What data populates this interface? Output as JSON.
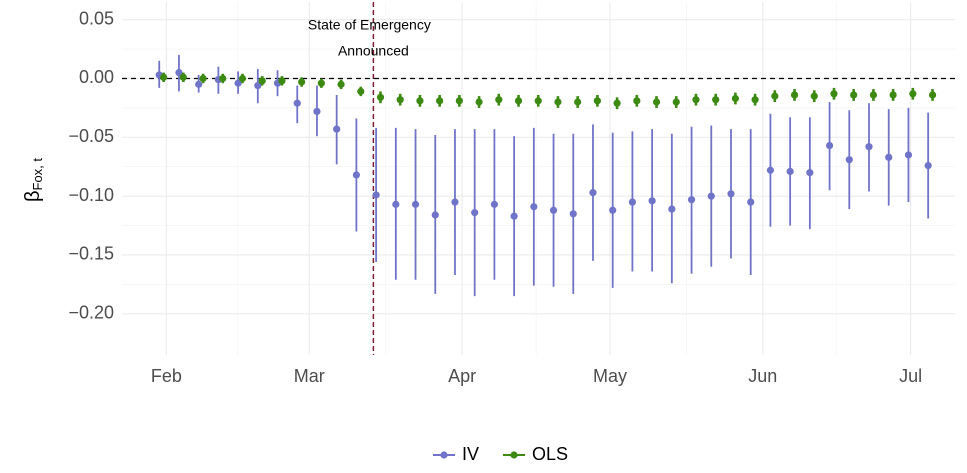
{
  "chart_data": {
    "type": "errorbar",
    "y_label": "β",
    "y_label_subscript": "Fox, t",
    "xlim": [
      23,
      192
    ],
    "xticks": [
      {
        "value": 32,
        "label": "Feb"
      },
      {
        "value": 61,
        "label": "Mar"
      },
      {
        "value": 92,
        "label": "Apr"
      },
      {
        "value": 122,
        "label": "May"
      },
      {
        "value": 153,
        "label": "Jun"
      },
      {
        "value": 183,
        "label": "Jul"
      }
    ],
    "ylim": [
      -0.235,
      0.065
    ],
    "yticks": [
      {
        "value": 0.05,
        "label": "0.05"
      },
      {
        "value": 0,
        "label": "0.00"
      },
      {
        "value": -0.05,
        "label": "−0.05"
      },
      {
        "value": -0.1,
        "label": "−0.10"
      },
      {
        "value": -0.15,
        "label": "−0.15"
      },
      {
        "value": -0.2,
        "label": "−0.20"
      }
    ],
    "grid": true,
    "hline": 0,
    "annotation": {
      "x": 74,
      "lines": [
        "State of Emergency",
        "Announced"
      ],
      "color": "#7b1f2e"
    },
    "legend": "bottom",
    "x": [
      31,
      35,
      39,
      43,
      47,
      51,
      55,
      59,
      63,
      67,
      71,
      75,
      79,
      83,
      87,
      91,
      95,
      99,
      103,
      107,
      111,
      115,
      119,
      123,
      127,
      131,
      135,
      139,
      143,
      147,
      151,
      155,
      159,
      163,
      167,
      171,
      175,
      179,
      183,
      187
    ],
    "series": [
      {
        "name": "IV",
        "color": "#7074c8",
        "values": [
          0.003,
          0.005,
          -0.005,
          -0.001,
          -0.004,
          -0.006,
          -0.004,
          -0.021,
          -0.028,
          -0.043,
          -0.082,
          -0.099,
          -0.107,
          -0.107,
          -0.116,
          -0.105,
          -0.114,
          -0.107,
          -0.117,
          -0.109,
          -0.112,
          -0.115,
          -0.097,
          -0.112,
          -0.105,
          -0.104,
          -0.111,
          -0.103,
          -0.1,
          -0.098,
          -0.105,
          -0.078,
          -0.079,
          -0.08,
          -0.057,
          -0.069,
          -0.058,
          -0.067,
          -0.065,
          -0.074
        ],
        "lower": [
          -0.008,
          -0.011,
          -0.012,
          -0.013,
          -0.013,
          -0.021,
          -0.015,
          -0.038,
          -0.049,
          -0.073,
          -0.13,
          -0.156,
          -0.171,
          -0.171,
          -0.183,
          -0.167,
          -0.185,
          -0.171,
          -0.185,
          -0.176,
          -0.177,
          -0.183,
          -0.155,
          -0.178,
          -0.164,
          -0.164,
          -0.174,
          -0.166,
          -0.16,
          -0.153,
          -0.167,
          -0.126,
          -0.125,
          -0.128,
          -0.095,
          -0.111,
          -0.096,
          -0.108,
          -0.105,
          -0.119
        ],
        "upper": [
          0.015,
          0.02,
          0.003,
          0.01,
          0.006,
          0.008,
          0.007,
          -0.006,
          -0.006,
          -0.014,
          -0.034,
          -0.042,
          -0.042,
          -0.043,
          -0.048,
          -0.043,
          -0.043,
          -0.043,
          -0.049,
          -0.042,
          -0.047,
          -0.047,
          -0.039,
          -0.046,
          -0.045,
          -0.043,
          -0.047,
          -0.041,
          -0.04,
          -0.043,
          -0.043,
          -0.03,
          -0.033,
          -0.033,
          -0.02,
          -0.027,
          -0.021,
          -0.026,
          -0.025,
          -0.029
        ]
      },
      {
        "name": "OLS",
        "color": "#3c8a12",
        "values": [
          0.001,
          0.001,
          0,
          0,
          0,
          -0.002,
          -0.002,
          -0.003,
          -0.004,
          -0.005,
          -0.011,
          -0.016,
          -0.018,
          -0.019,
          -0.019,
          -0.019,
          -0.02,
          -0.018,
          -0.019,
          -0.019,
          -0.02,
          -0.02,
          -0.019,
          -0.021,
          -0.019,
          -0.02,
          -0.02,
          -0.018,
          -0.018,
          -0.017,
          -0.018,
          -0.015,
          -0.014,
          -0.015,
          -0.013,
          -0.014,
          -0.014,
          -0.014,
          -0.013,
          -0.014
        ],
        "lower": [
          -0.003,
          -0.003,
          -0.004,
          -0.004,
          -0.004,
          -0.006,
          -0.006,
          -0.007,
          -0.008,
          -0.009,
          -0.015,
          -0.021,
          -0.023,
          -0.024,
          -0.024,
          -0.024,
          -0.025,
          -0.023,
          -0.024,
          -0.024,
          -0.025,
          -0.025,
          -0.024,
          -0.026,
          -0.024,
          -0.025,
          -0.025,
          -0.023,
          -0.023,
          -0.022,
          -0.023,
          -0.02,
          -0.019,
          -0.02,
          -0.018,
          -0.019,
          -0.019,
          -0.019,
          -0.018,
          -0.019
        ],
        "upper": [
          0.005,
          0.005,
          0.004,
          0.004,
          0.004,
          0.002,
          0.002,
          0.001,
          0,
          -0.001,
          -0.007,
          -0.011,
          -0.013,
          -0.014,
          -0.014,
          -0.014,
          -0.015,
          -0.013,
          -0.014,
          -0.014,
          -0.015,
          -0.015,
          -0.014,
          -0.016,
          -0.014,
          -0.015,
          -0.015,
          -0.013,
          -0.013,
          -0.012,
          -0.013,
          -0.01,
          -0.009,
          -0.01,
          -0.008,
          -0.009,
          -0.009,
          -0.009,
          -0.008,
          -0.009
        ]
      }
    ]
  }
}
